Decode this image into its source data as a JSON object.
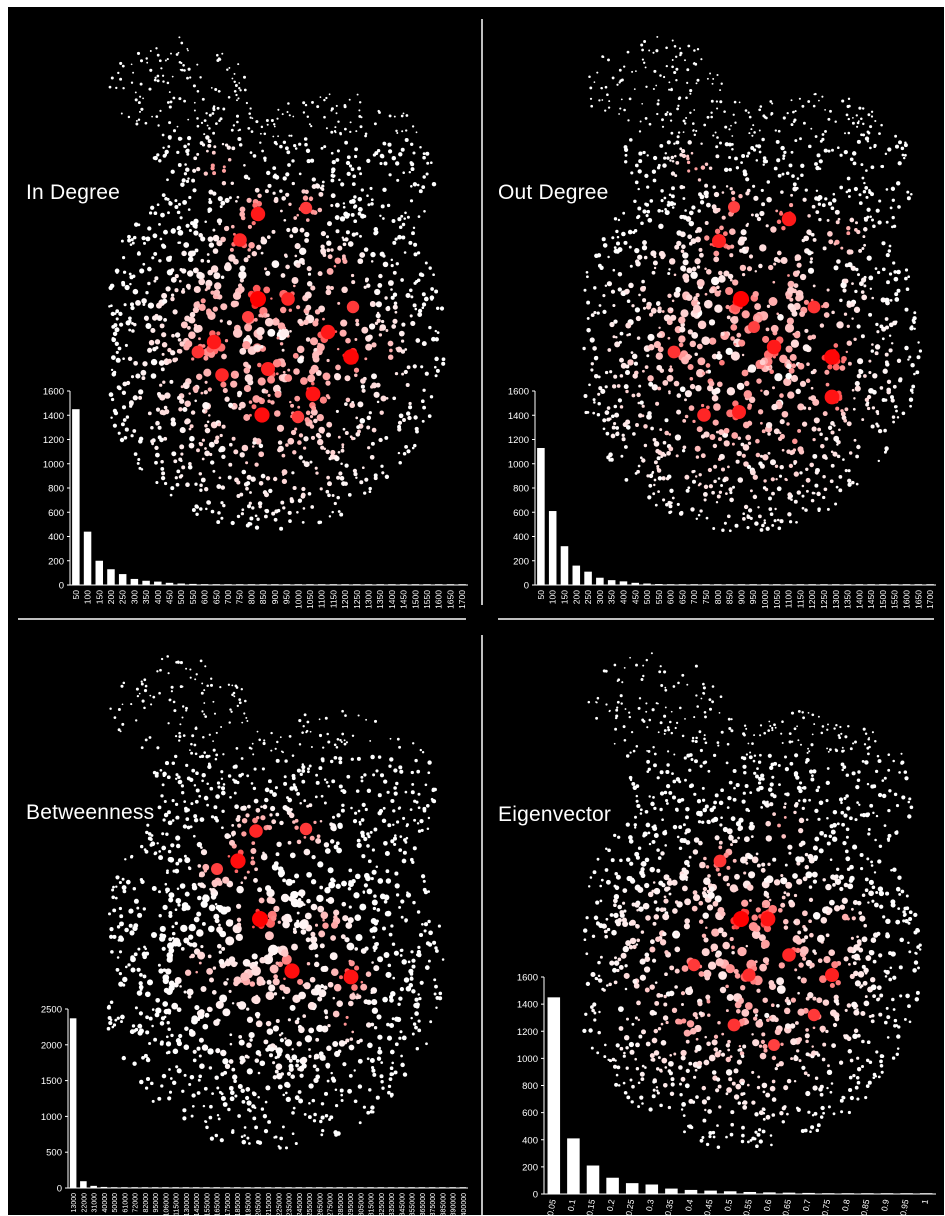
{
  "colors": {
    "background": "#000000",
    "node_low": "#ffffff",
    "node_high": "#ff0000",
    "axis": "#ffffff",
    "divider": "#bfbfbf"
  },
  "chart_data": [
    {
      "type": "bar",
      "title": "In Degree",
      "categories": [
        "50",
        "100",
        "150",
        "200",
        "250",
        "300",
        "350",
        "400",
        "450",
        "500",
        "550",
        "600",
        "650",
        "700",
        "750",
        "800",
        "850",
        "900",
        "950",
        "1000",
        "1050",
        "1100",
        "1150",
        "1200",
        "1250",
        "1300",
        "1350",
        "1400",
        "1450",
        "1500",
        "1550",
        "1600",
        "1650",
        "1700"
      ],
      "values": [
        1450,
        440,
        200,
        130,
        90,
        50,
        35,
        28,
        18,
        12,
        9,
        7,
        6,
        5,
        4,
        4,
        3,
        3,
        2,
        2,
        2,
        2,
        1,
        2,
        1,
        1,
        1,
        1,
        1,
        1,
        1,
        1,
        1,
        2
      ],
      "yticks": [
        "0",
        "200",
        "400",
        "600",
        "800",
        "1000",
        "1200",
        "1400",
        "1600"
      ],
      "ylim": [
        0,
        1600
      ],
      "xlabel": "",
      "ylabel": "",
      "grid": false,
      "background": "network graph; node color encodes in-degree"
    },
    {
      "type": "bar",
      "title": "Out Degree",
      "categories": [
        "50",
        "100",
        "150",
        "200",
        "250",
        "300",
        "350",
        "400",
        "450",
        "500",
        "550",
        "600",
        "650",
        "700",
        "750",
        "800",
        "850",
        "900",
        "950",
        "1000",
        "1050",
        "1100",
        "1150",
        "1200",
        "1250",
        "1300",
        "1350",
        "1400",
        "1450",
        "1500",
        "1550",
        "1600",
        "1650",
        "1700"
      ],
      "values": [
        1130,
        610,
        320,
        160,
        110,
        60,
        40,
        30,
        18,
        12,
        8,
        6,
        5,
        4,
        3,
        3,
        2,
        2,
        2,
        1,
        1,
        1,
        1,
        1,
        1,
        1,
        1,
        1,
        1,
        1,
        1,
        1,
        1,
        1
      ],
      "yticks": [
        "0",
        "200",
        "400",
        "600",
        "800",
        "1000",
        "1200",
        "1400",
        "1600"
      ],
      "ylim": [
        0,
        1600
      ],
      "xlabel": "",
      "ylabel": "",
      "grid": false,
      "background": "network graph; node color encodes out-degree"
    },
    {
      "type": "bar",
      "title": "Betweenness",
      "categories": [
        "13000",
        "22000",
        "31000",
        "40000",
        "50000",
        "61000",
        "72000",
        "82000",
        "95000",
        "106000",
        "115000",
        "130000",
        "145000",
        "155000",
        "165000",
        "175000",
        "185000",
        "195000",
        "205000",
        "215000",
        "225000",
        "235000",
        "245000",
        "255000",
        "265000",
        "275000",
        "285000",
        "295000",
        "305000",
        "315000",
        "325000",
        "335000",
        "345000",
        "355000",
        "365000",
        "375000",
        "385000",
        "390000",
        "400000"
      ],
      "values": [
        2370,
        95,
        30,
        15,
        8,
        6,
        5,
        4,
        3,
        3,
        2,
        2,
        2,
        1,
        1,
        1,
        1,
        1,
        1,
        1,
        1,
        1,
        1,
        1,
        1,
        1,
        1,
        1,
        1,
        1,
        1,
        1,
        1,
        1,
        1,
        1,
        1,
        1,
        1
      ],
      "yticks": [
        "0",
        "500",
        "1000",
        "1500",
        "2000",
        "2500"
      ],
      "ylim": [
        0,
        2500
      ],
      "xlabel": "",
      "ylabel": "",
      "grid": false,
      "background": "network graph; node color encodes betweenness centrality"
    },
    {
      "type": "bar",
      "title": "Eigenvector",
      "categories": [
        "0.05",
        "0.1",
        "0.15",
        "0.2",
        "0.25",
        "0.3",
        "0.35",
        "0.4",
        "0.45",
        "0.5",
        "0.55",
        "0.6",
        "0.65",
        "0.7",
        "0.75",
        "0.8",
        "0.85",
        "0.9",
        "0.95",
        "1"
      ],
      "values": [
        1450,
        410,
        210,
        120,
        80,
        70,
        40,
        30,
        25,
        20,
        15,
        12,
        10,
        8,
        6,
        5,
        3,
        2,
        2,
        2
      ],
      "yticks": [
        "0",
        "200",
        "400",
        "600",
        "800",
        "1000",
        "1200",
        "1400",
        "1600"
      ],
      "ylim": [
        0,
        1600
      ],
      "xlabel": "",
      "ylabel": "",
      "grid": false,
      "background": "network graph; node color encodes eigenvector centrality"
    }
  ]
}
